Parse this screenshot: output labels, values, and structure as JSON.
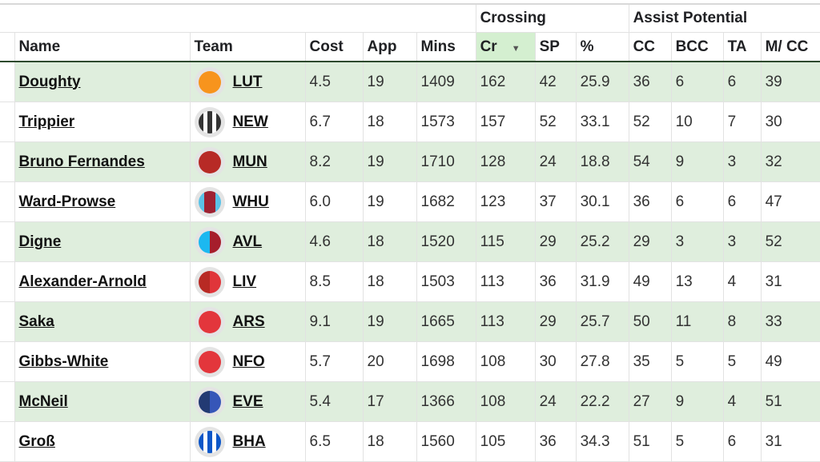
{
  "groups": {
    "crossing": "Crossing",
    "assist": "Assist Potential"
  },
  "columns": [
    "Name",
    "Team",
    "Cost",
    "App",
    "Mins",
    "Cr",
    "SP",
    "%",
    "CC",
    "BCC",
    "TA",
    "M/ CC"
  ],
  "sorted_column": "Cr",
  "rows": [
    {
      "name": "Doughty",
      "team": "LUT",
      "badge": {
        "kind": "solid",
        "colors": [
          "#f7941d"
        ]
      },
      "cost": "4.5",
      "app": "19",
      "mins": "1409",
      "cr": "162",
      "sp": "42",
      "pct": "25.9",
      "cc": "36",
      "bcc": "6",
      "ta": "6",
      "mcc": "39"
    },
    {
      "name": "Trippier",
      "team": "NEW",
      "badge": {
        "kind": "stripes",
        "colors": [
          "#333333",
          "#ffffff"
        ]
      },
      "cost": "6.7",
      "app": "18",
      "mins": "1573",
      "cr": "157",
      "sp": "52",
      "pct": "33.1",
      "cc": "52",
      "bcc": "10",
      "ta": "7",
      "mcc": "30"
    },
    {
      "name": "Bruno Fernandes",
      "team": "MUN",
      "badge": {
        "kind": "solid",
        "colors": [
          "#b72a26"
        ]
      },
      "cost": "8.2",
      "app": "19",
      "mins": "1710",
      "cr": "128",
      "sp": "24",
      "pct": "18.8",
      "cc": "54",
      "bcc": "9",
      "ta": "3",
      "mcc": "32"
    },
    {
      "name": "Ward-Prowse",
      "team": "WHU",
      "badge": {
        "kind": "center",
        "colors": [
          "#5bc2e7",
          "#9e2232"
        ]
      },
      "cost": "6.0",
      "app": "19",
      "mins": "1682",
      "cr": "123",
      "sp": "37",
      "pct": "30.1",
      "cc": "36",
      "bcc": "6",
      "ta": "6",
      "mcc": "47"
    },
    {
      "name": "Digne",
      "team": "AVL",
      "badge": {
        "kind": "split",
        "colors": [
          "#1cb8f0",
          "#a61e2c"
        ]
      },
      "cost": "4.6",
      "app": "18",
      "mins": "1520",
      "cr": "115",
      "sp": "29",
      "pct": "25.2",
      "cc": "29",
      "bcc": "3",
      "ta": "3",
      "mcc": "52"
    },
    {
      "name": "Alexander-Arnold",
      "team": "LIV",
      "badge": {
        "kind": "split",
        "colors": [
          "#b82a24",
          "#e0353a"
        ]
      },
      "cost": "8.5",
      "app": "18",
      "mins": "1503",
      "cr": "113",
      "sp": "36",
      "pct": "31.9",
      "cc": "49",
      "bcc": "13",
      "ta": "4",
      "mcc": "31"
    },
    {
      "name": "Saka",
      "team": "ARS",
      "badge": {
        "kind": "solid",
        "colors": [
          "#e3363c"
        ]
      },
      "cost": "9.1",
      "app": "19",
      "mins": "1665",
      "cr": "113",
      "sp": "29",
      "pct": "25.7",
      "cc": "50",
      "bcc": "11",
      "ta": "8",
      "mcc": "33"
    },
    {
      "name": "Gibbs-White",
      "team": "NFO",
      "badge": {
        "kind": "solid",
        "colors": [
          "#e3363c"
        ]
      },
      "cost": "5.7",
      "app": "20",
      "mins": "1698",
      "cr": "108",
      "sp": "30",
      "pct": "27.8",
      "cc": "35",
      "bcc": "5",
      "ta": "5",
      "mcc": "49"
    },
    {
      "name": "McNeil",
      "team": "EVE",
      "badge": {
        "kind": "split",
        "colors": [
          "#233a73",
          "#3656b8"
        ]
      },
      "cost": "5.4",
      "app": "17",
      "mins": "1366",
      "cr": "108",
      "sp": "24",
      "pct": "22.2",
      "cc": "27",
      "bcc": "9",
      "ta": "4",
      "mcc": "51"
    },
    {
      "name": "Groß",
      "team": "BHA",
      "badge": {
        "kind": "stripes",
        "colors": [
          "#0b56c8",
          "#ffffff"
        ]
      },
      "cost": "6.5",
      "app": "18",
      "mins": "1560",
      "cr": "105",
      "sp": "36",
      "pct": "34.3",
      "cc": "51",
      "bcc": "5",
      "ta": "6",
      "mcc": "31"
    }
  ]
}
